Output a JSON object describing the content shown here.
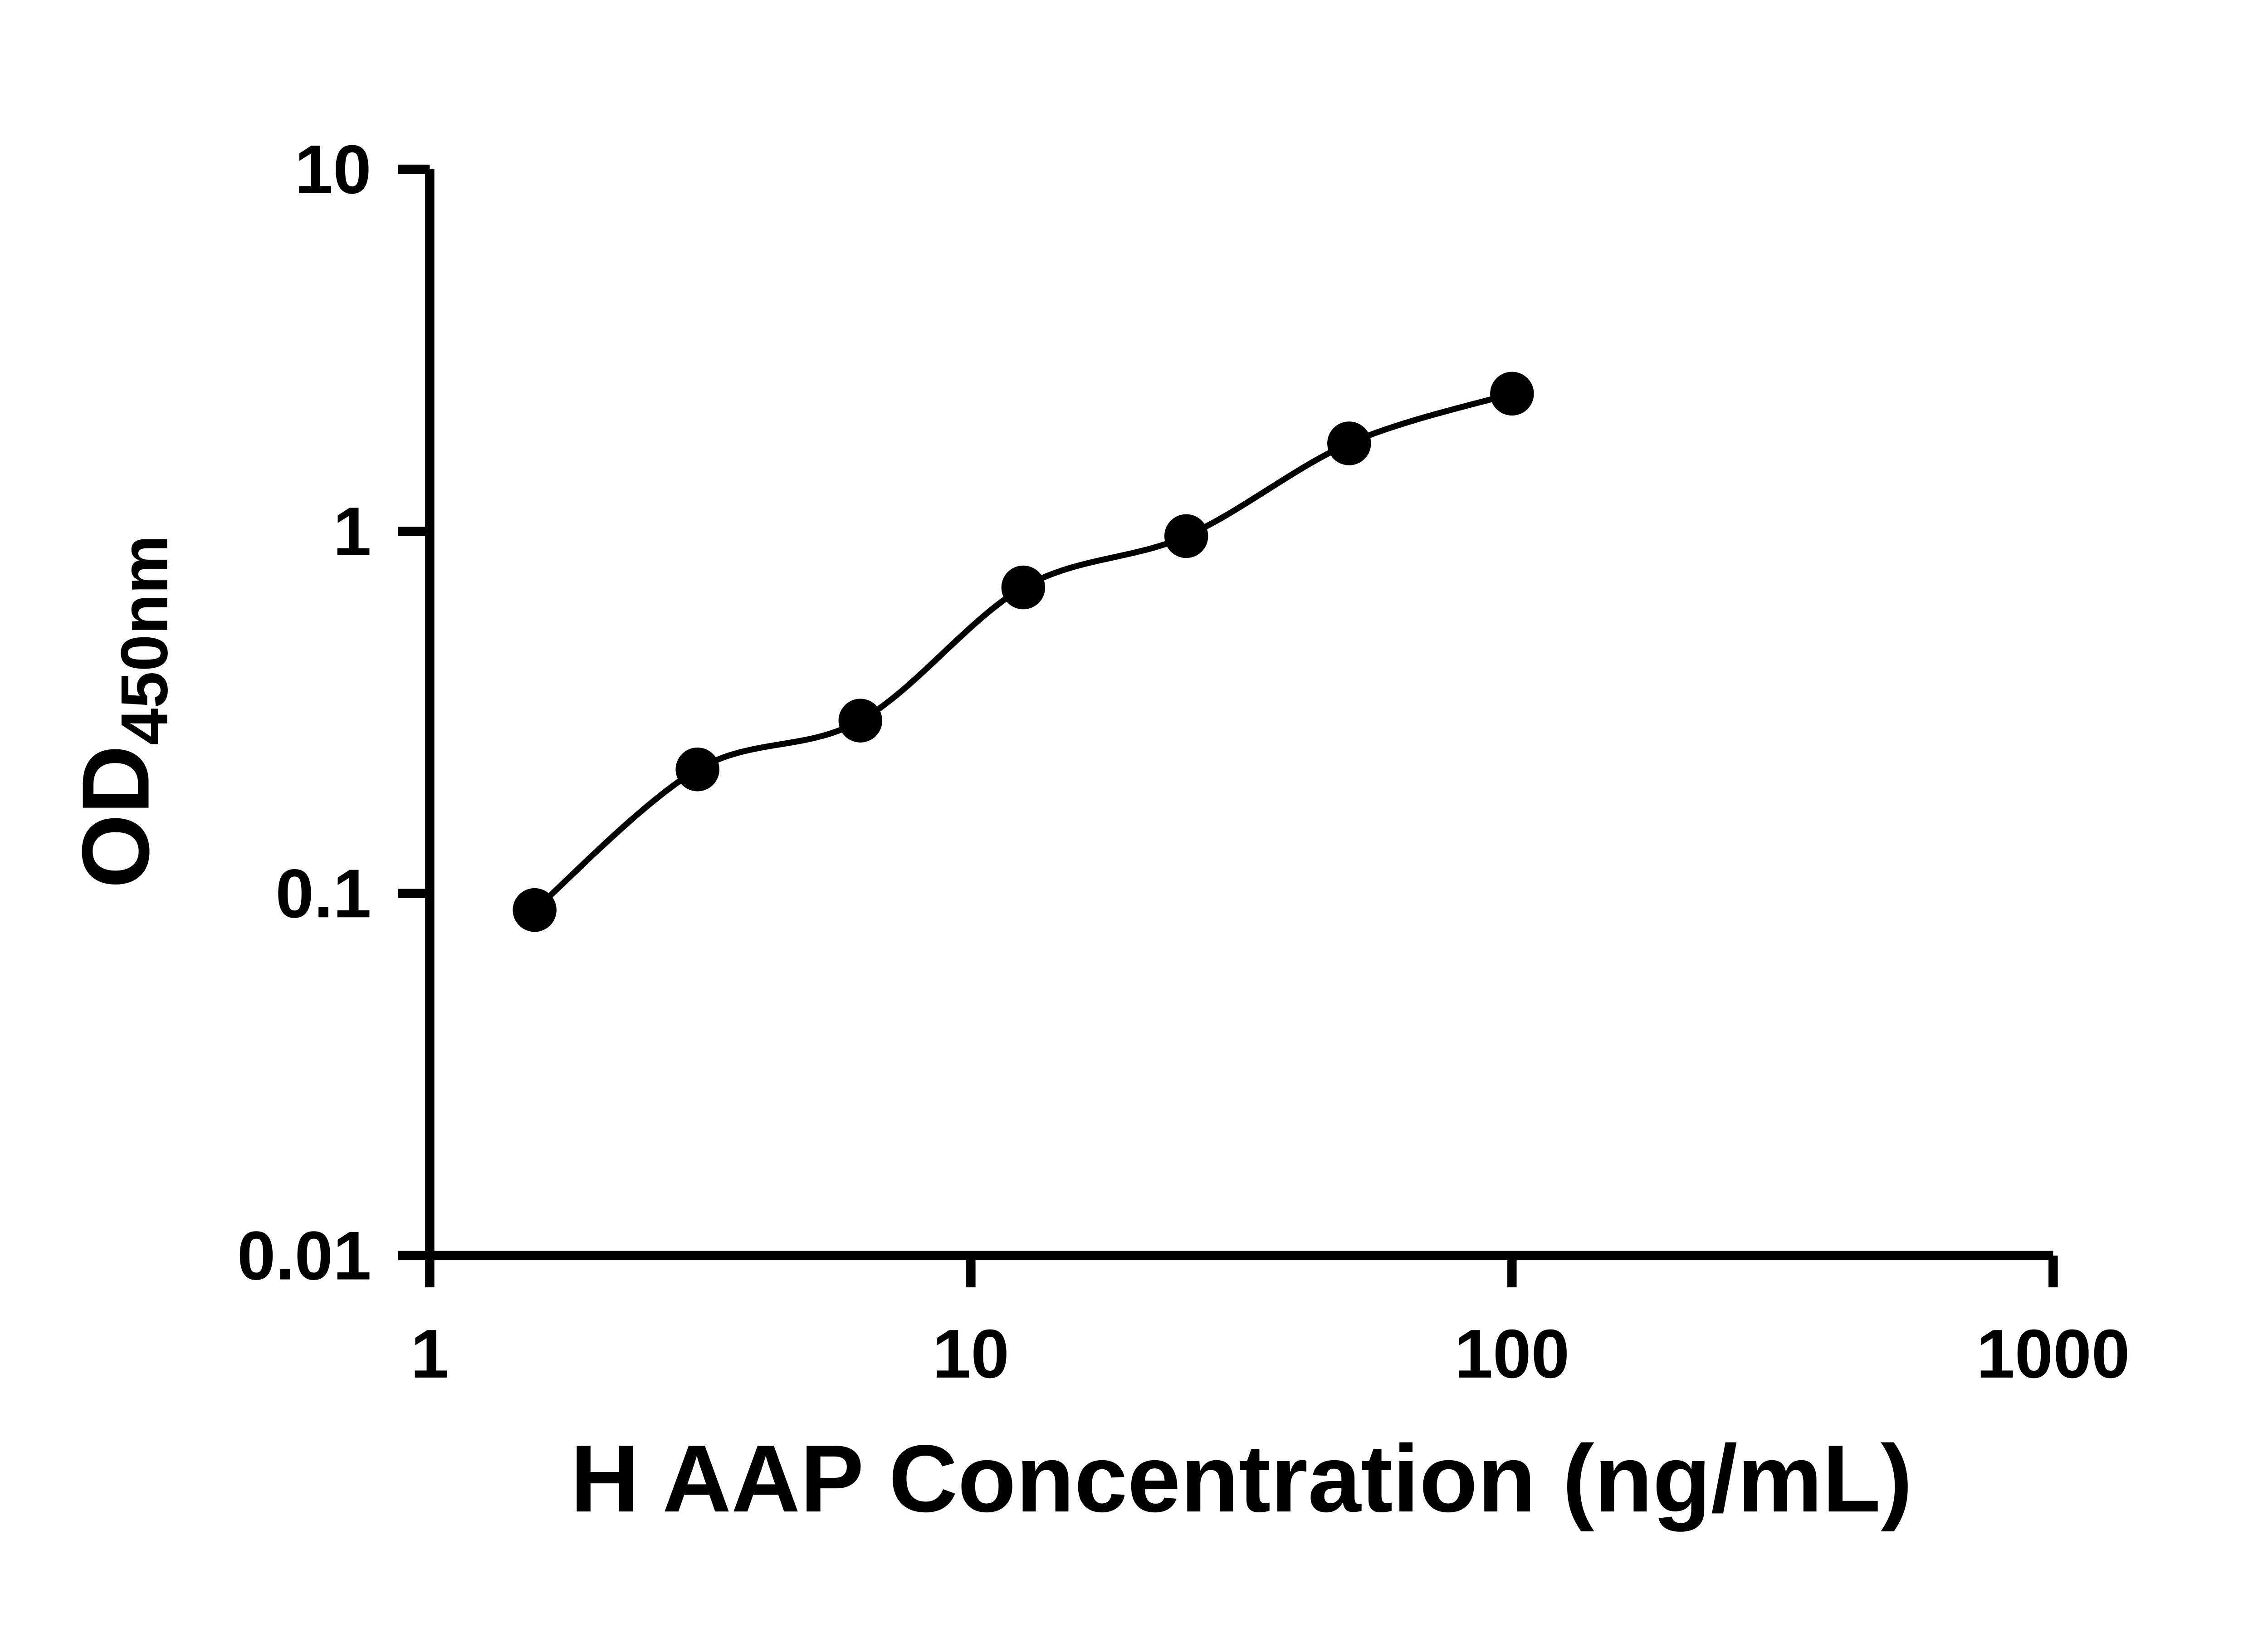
{
  "chart_data": {
    "type": "scatter",
    "title": "",
    "xlabel": "H AAP Concentration (ng/mL)",
    "ylabel": "OD450nm",
    "ylabel_main": "OD",
    "ylabel_sub": "450nm",
    "x_scale": "log",
    "y_scale": "log",
    "xlim": [
      1,
      1000
    ],
    "ylim": [
      0.01,
      10
    ],
    "x_ticks": [
      1,
      10,
      100,
      1000
    ],
    "x_tick_labels": [
      "1",
      "10",
      "100",
      "1000"
    ],
    "y_ticks": [
      0.01,
      0.1,
      1,
      10
    ],
    "y_tick_labels": [
      "0.01",
      "0.1",
      "1",
      "10"
    ],
    "grid": false,
    "legend": false,
    "has_fit_curve": true,
    "points": [
      {
        "x": 1.5625,
        "y": 0.09
      },
      {
        "x": 3.125,
        "y": 0.22
      },
      {
        "x": 6.25,
        "y": 0.3
      },
      {
        "x": 12.5,
        "y": 0.7
      },
      {
        "x": 25,
        "y": 0.97
      },
      {
        "x": 50,
        "y": 1.75
      },
      {
        "x": 100,
        "y": 2.4
      }
    ],
    "colors": {
      "marker": "#000000",
      "curve": "#000000",
      "axis": "#000000",
      "text": "#000000",
      "background": "#ffffff"
    }
  }
}
